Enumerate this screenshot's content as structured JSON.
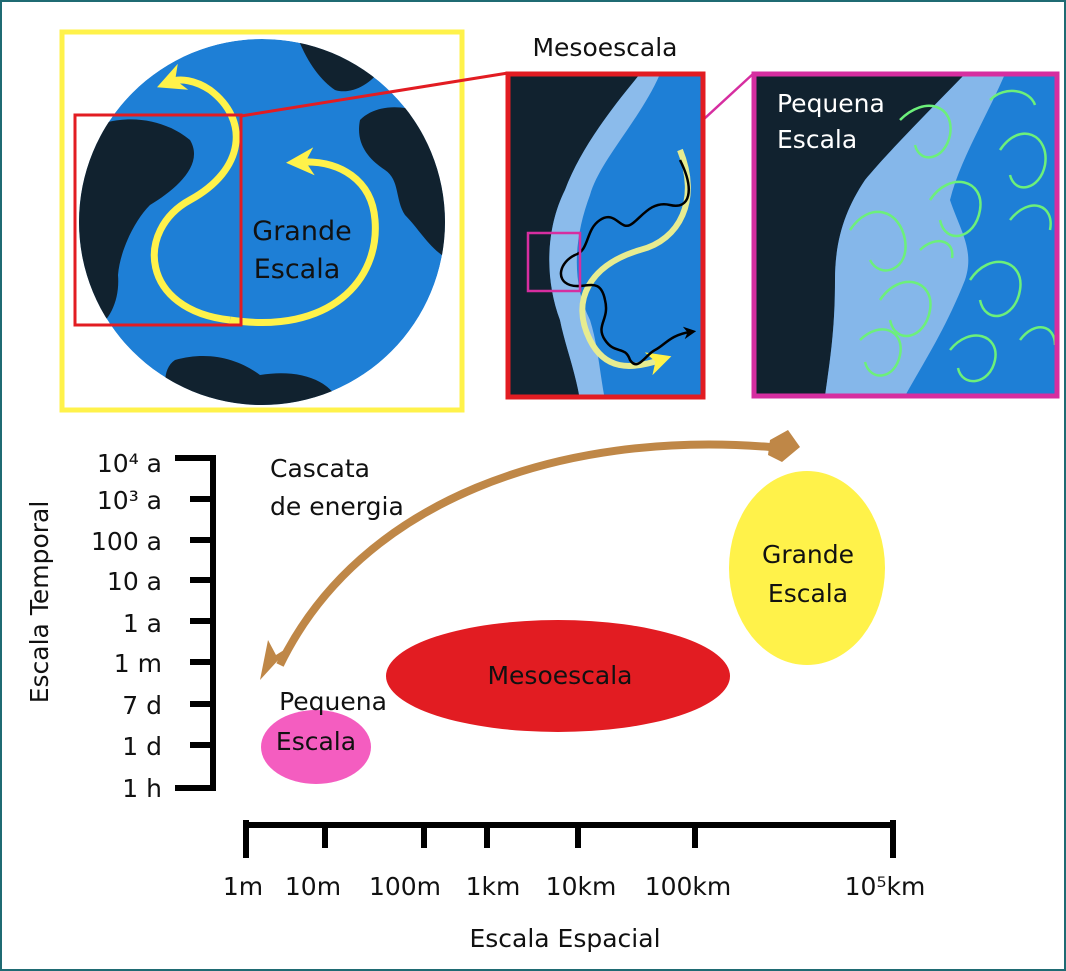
{
  "panels": {
    "large_label_line1": "Grande",
    "large_label_line2": "Escala",
    "meso_title": "Mesoescala",
    "small_label_line1": "Pequena",
    "small_label_line2": "Escala"
  },
  "colors": {
    "ocean": "#1e7fd6",
    "land": "#11222f",
    "large_scale": "#fff24a",
    "meso_scale": "#e21c22",
    "small_scale": "#f45dc0",
    "small_frame": "#d62ea0",
    "eddies": "#6cf07a",
    "cascade_arrow": "#bf8747"
  },
  "cascade": {
    "line1": "Cascata",
    "line2": "de energia"
  },
  "time_axis": {
    "title": "Escala Temporal",
    "ticks": [
      "10⁴ a",
      "10³ a",
      "100 a",
      "10 a",
      "1 a",
      "1 m",
      "7 d",
      "1 d",
      "1 h"
    ]
  },
  "space_axis": {
    "title": "Escala Espacial",
    "ticks": [
      "1m",
      "10m",
      "100m",
      "1km",
      "10km",
      "100km",
      "10⁵km"
    ]
  },
  "regimes": {
    "small_line1": "Pequena",
    "small_line2": "Escala",
    "meso": "Mesoescala",
    "large_line1": "Grande",
    "large_line2": "Escala"
  }
}
